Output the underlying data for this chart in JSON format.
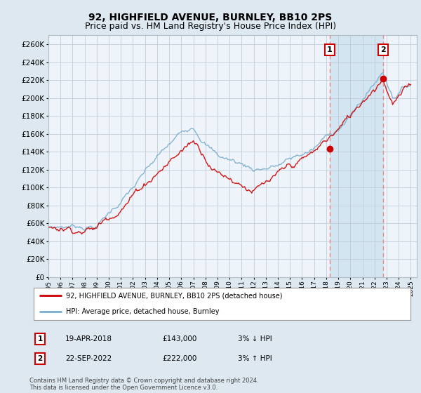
{
  "title": "92, HIGHFIELD AVENUE, BURNLEY, BB10 2PS",
  "subtitle": "Price paid vs. HM Land Registry's House Price Index (HPI)",
  "ylim": [
    0,
    270000
  ],
  "yticks": [
    0,
    20000,
    40000,
    60000,
    80000,
    100000,
    120000,
    140000,
    160000,
    180000,
    200000,
    220000,
    240000,
    260000
  ],
  "sale1_year": 2018.29,
  "sale1_price": 143000,
  "sale2_year": 2022.72,
  "sale2_price": 222000,
  "xlim_left": 1995,
  "xlim_right": 2025.5,
  "legend_line1": "92, HIGHFIELD AVENUE, BURNLEY, BB10 2PS (detached house)",
  "legend_line2": "HPI: Average price, detached house, Burnley",
  "date1_str": "19-APR-2018",
  "date2_str": "22-SEP-2022",
  "price1_str": "£143,000",
  "price2_str": "£222,000",
  "hpi1_str": "3% ↓ HPI",
  "hpi2_str": "3% ↑ HPI",
  "footnote": "Contains HM Land Registry data © Crown copyright and database right 2024.\nThis data is licensed under the Open Government Licence v3.0.",
  "bg_color": "#dde8f0",
  "plot_bg": "#eef4f9",
  "line_color_red": "#cc0000",
  "line_color_blue": "#7aadcc",
  "vline_color": "#ee8888",
  "shade_color": "#d0e4f0",
  "title_fontsize": 10,
  "subtitle_fontsize": 9
}
